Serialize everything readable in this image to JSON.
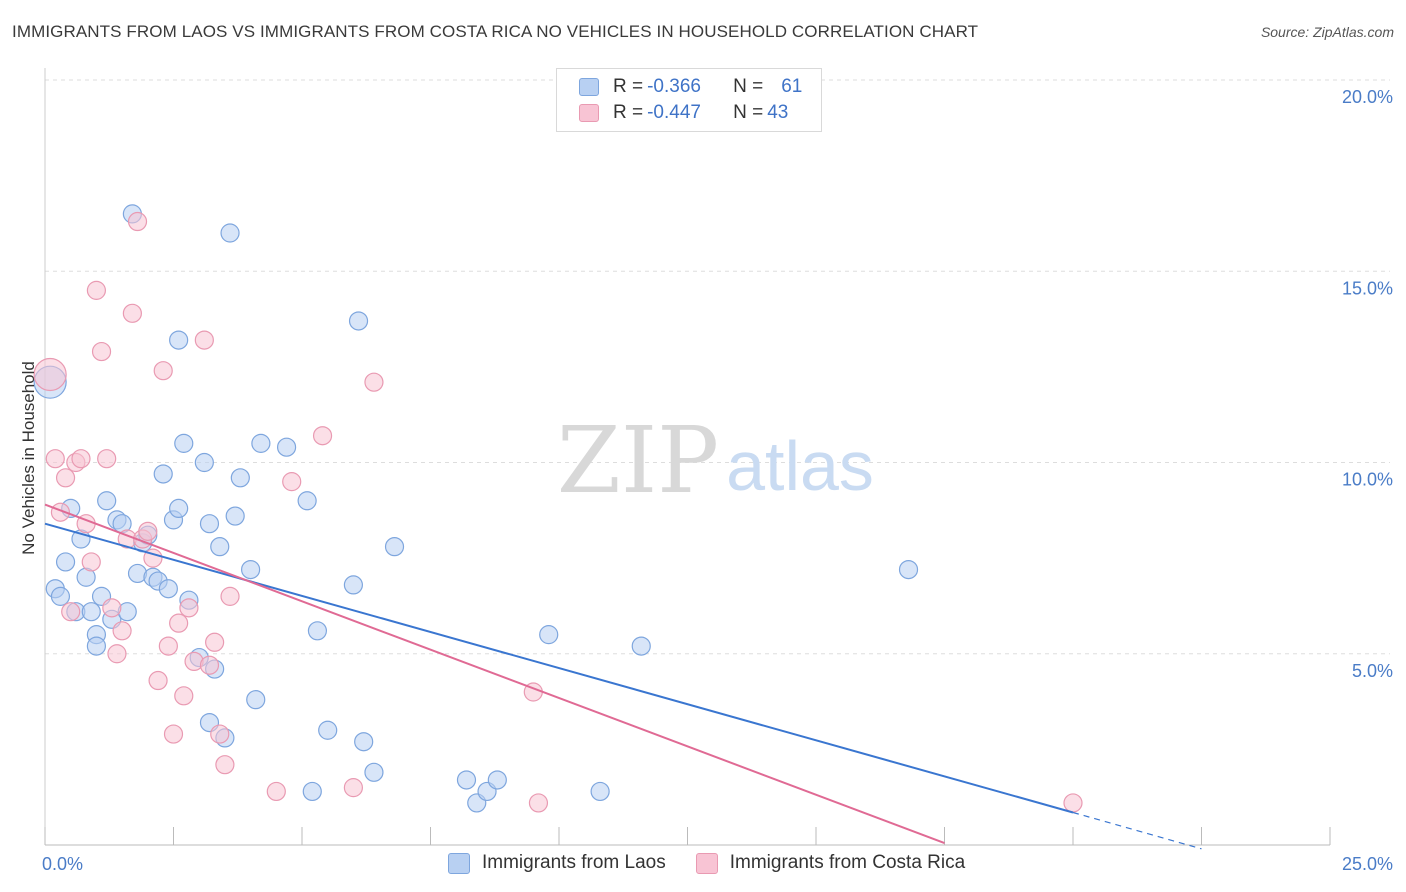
{
  "title": "IMMIGRANTS FROM LAOS VS IMMIGRANTS FROM COSTA RICA NO VEHICLES IN HOUSEHOLD CORRELATION CHART",
  "source": "Source: ZipAtlas.com",
  "watermark": {
    "zip": "ZIP",
    "atlas": "atlas"
  },
  "colors": {
    "laos_fill": "#b8d0f2",
    "laos_stroke": "#7ea6de",
    "laos_line": "#3a76d0",
    "cr_fill": "#f8c4d4",
    "cr_stroke": "#e99ab2",
    "cr_line": "#e06a94",
    "grid": "#dddddd",
    "tick_text": "#4a7cc7"
  },
  "legend": {
    "r_label": "R = ",
    "n_label": "N = ",
    "laos_r": "-0.366",
    "laos_n": "61",
    "cr_r": "-0.447",
    "cr_n": "43"
  },
  "chart_data": {
    "type": "scatter",
    "title": "IMMIGRANTS FROM LAOS VS IMMIGRANTS FROM COSTA RICA NO VEHICLES IN HOUSEHOLD CORRELATION CHART",
    "xlabel": "",
    "ylabel": "No Vehicles in Household",
    "xlim": [
      0,
      25
    ],
    "ylim": [
      0,
      20
    ],
    "x_ticks": [
      "0.0%",
      "25.0%"
    ],
    "y_ticks": [
      "5.0%",
      "10.0%",
      "15.0%",
      "20.0%"
    ],
    "y_tick_values": [
      5,
      10,
      15,
      20
    ],
    "series": [
      {
        "name": "Immigrants from Laos",
        "trend": {
          "x": [
            0,
            20
          ],
          "y": [
            8.4,
            0.85
          ],
          "dashed_to": [
            22.5,
            -0.1
          ]
        },
        "points": [
          [
            0.1,
            12.1
          ],
          [
            0.2,
            6.7
          ],
          [
            0.3,
            6.5
          ],
          [
            0.4,
            7.4
          ],
          [
            0.5,
            8.8
          ],
          [
            0.6,
            6.1
          ],
          [
            0.7,
            8.0
          ],
          [
            0.8,
            7.0
          ],
          [
            0.9,
            6.1
          ],
          [
            1.0,
            5.5
          ],
          [
            1.0,
            5.2
          ],
          [
            1.1,
            6.5
          ],
          [
            1.2,
            9.0
          ],
          [
            1.3,
            5.9
          ],
          [
            1.4,
            8.5
          ],
          [
            1.5,
            8.4
          ],
          [
            1.6,
            6.1
          ],
          [
            1.7,
            16.5
          ],
          [
            1.8,
            7.1
          ],
          [
            1.9,
            7.9
          ],
          [
            2.0,
            8.1
          ],
          [
            2.1,
            7.0
          ],
          [
            2.2,
            6.9
          ],
          [
            2.3,
            9.7
          ],
          [
            2.4,
            6.7
          ],
          [
            2.5,
            8.5
          ],
          [
            2.6,
            8.8
          ],
          [
            2.6,
            13.2
          ],
          [
            2.7,
            10.5
          ],
          [
            2.8,
            6.4
          ],
          [
            3.0,
            4.9
          ],
          [
            3.1,
            10.0
          ],
          [
            3.2,
            3.2
          ],
          [
            3.2,
            8.4
          ],
          [
            3.3,
            4.6
          ],
          [
            3.4,
            7.8
          ],
          [
            3.5,
            2.8
          ],
          [
            3.6,
            16.0
          ],
          [
            3.7,
            8.6
          ],
          [
            3.8,
            9.6
          ],
          [
            4.0,
            7.2
          ],
          [
            4.1,
            3.8
          ],
          [
            4.2,
            10.5
          ],
          [
            4.7,
            10.4
          ],
          [
            5.1,
            9.0
          ],
          [
            5.2,
            1.4
          ],
          [
            5.3,
            5.6
          ],
          [
            5.5,
            3.0
          ],
          [
            6.0,
            6.8
          ],
          [
            6.1,
            13.7
          ],
          [
            6.2,
            2.7
          ],
          [
            6.4,
            1.9
          ],
          [
            6.8,
            7.8
          ],
          [
            8.2,
            1.7
          ],
          [
            8.4,
            1.1
          ],
          [
            8.6,
            1.4
          ],
          [
            8.8,
            1.7
          ],
          [
            9.8,
            5.5
          ],
          [
            10.8,
            1.4
          ],
          [
            11.6,
            5.2
          ],
          [
            16.8,
            7.2
          ]
        ]
      },
      {
        "name": "Immigrants from Costa Rica",
        "trend": {
          "x": [
            0,
            17.5
          ],
          "y": [
            8.9,
            0.05
          ]
        },
        "points": [
          [
            0.1,
            12.3
          ],
          [
            0.2,
            10.1
          ],
          [
            0.3,
            8.7
          ],
          [
            0.4,
            9.6
          ],
          [
            0.5,
            6.1
          ],
          [
            0.6,
            10.0
          ],
          [
            0.7,
            10.1
          ],
          [
            0.8,
            8.4
          ],
          [
            0.9,
            7.4
          ],
          [
            1.0,
            14.5
          ],
          [
            1.1,
            12.9
          ],
          [
            1.2,
            10.1
          ],
          [
            1.3,
            6.2
          ],
          [
            1.4,
            5.0
          ],
          [
            1.5,
            5.6
          ],
          [
            1.6,
            8.0
          ],
          [
            1.7,
            13.9
          ],
          [
            1.8,
            16.3
          ],
          [
            1.9,
            8.0
          ],
          [
            2.0,
            8.2
          ],
          [
            2.1,
            7.5
          ],
          [
            2.2,
            4.3
          ],
          [
            2.3,
            12.4
          ],
          [
            2.4,
            5.2
          ],
          [
            2.5,
            2.9
          ],
          [
            2.6,
            5.8
          ],
          [
            2.7,
            3.9
          ],
          [
            2.8,
            6.2
          ],
          [
            2.9,
            4.8
          ],
          [
            3.1,
            13.2
          ],
          [
            3.2,
            4.7
          ],
          [
            3.3,
            5.3
          ],
          [
            3.4,
            2.9
          ],
          [
            3.5,
            2.1
          ],
          [
            3.6,
            6.5
          ],
          [
            4.5,
            1.4
          ],
          [
            4.8,
            9.5
          ],
          [
            5.4,
            10.7
          ],
          [
            6.0,
            1.5
          ],
          [
            6.4,
            12.1
          ],
          [
            9.5,
            4.0
          ],
          [
            9.6,
            1.1
          ],
          [
            20.0,
            1.1
          ]
        ]
      }
    ]
  },
  "bottom_legend": {
    "laos_label": "Immigrants from Laos",
    "cr_label": "Immigrants from Costa Rica"
  }
}
